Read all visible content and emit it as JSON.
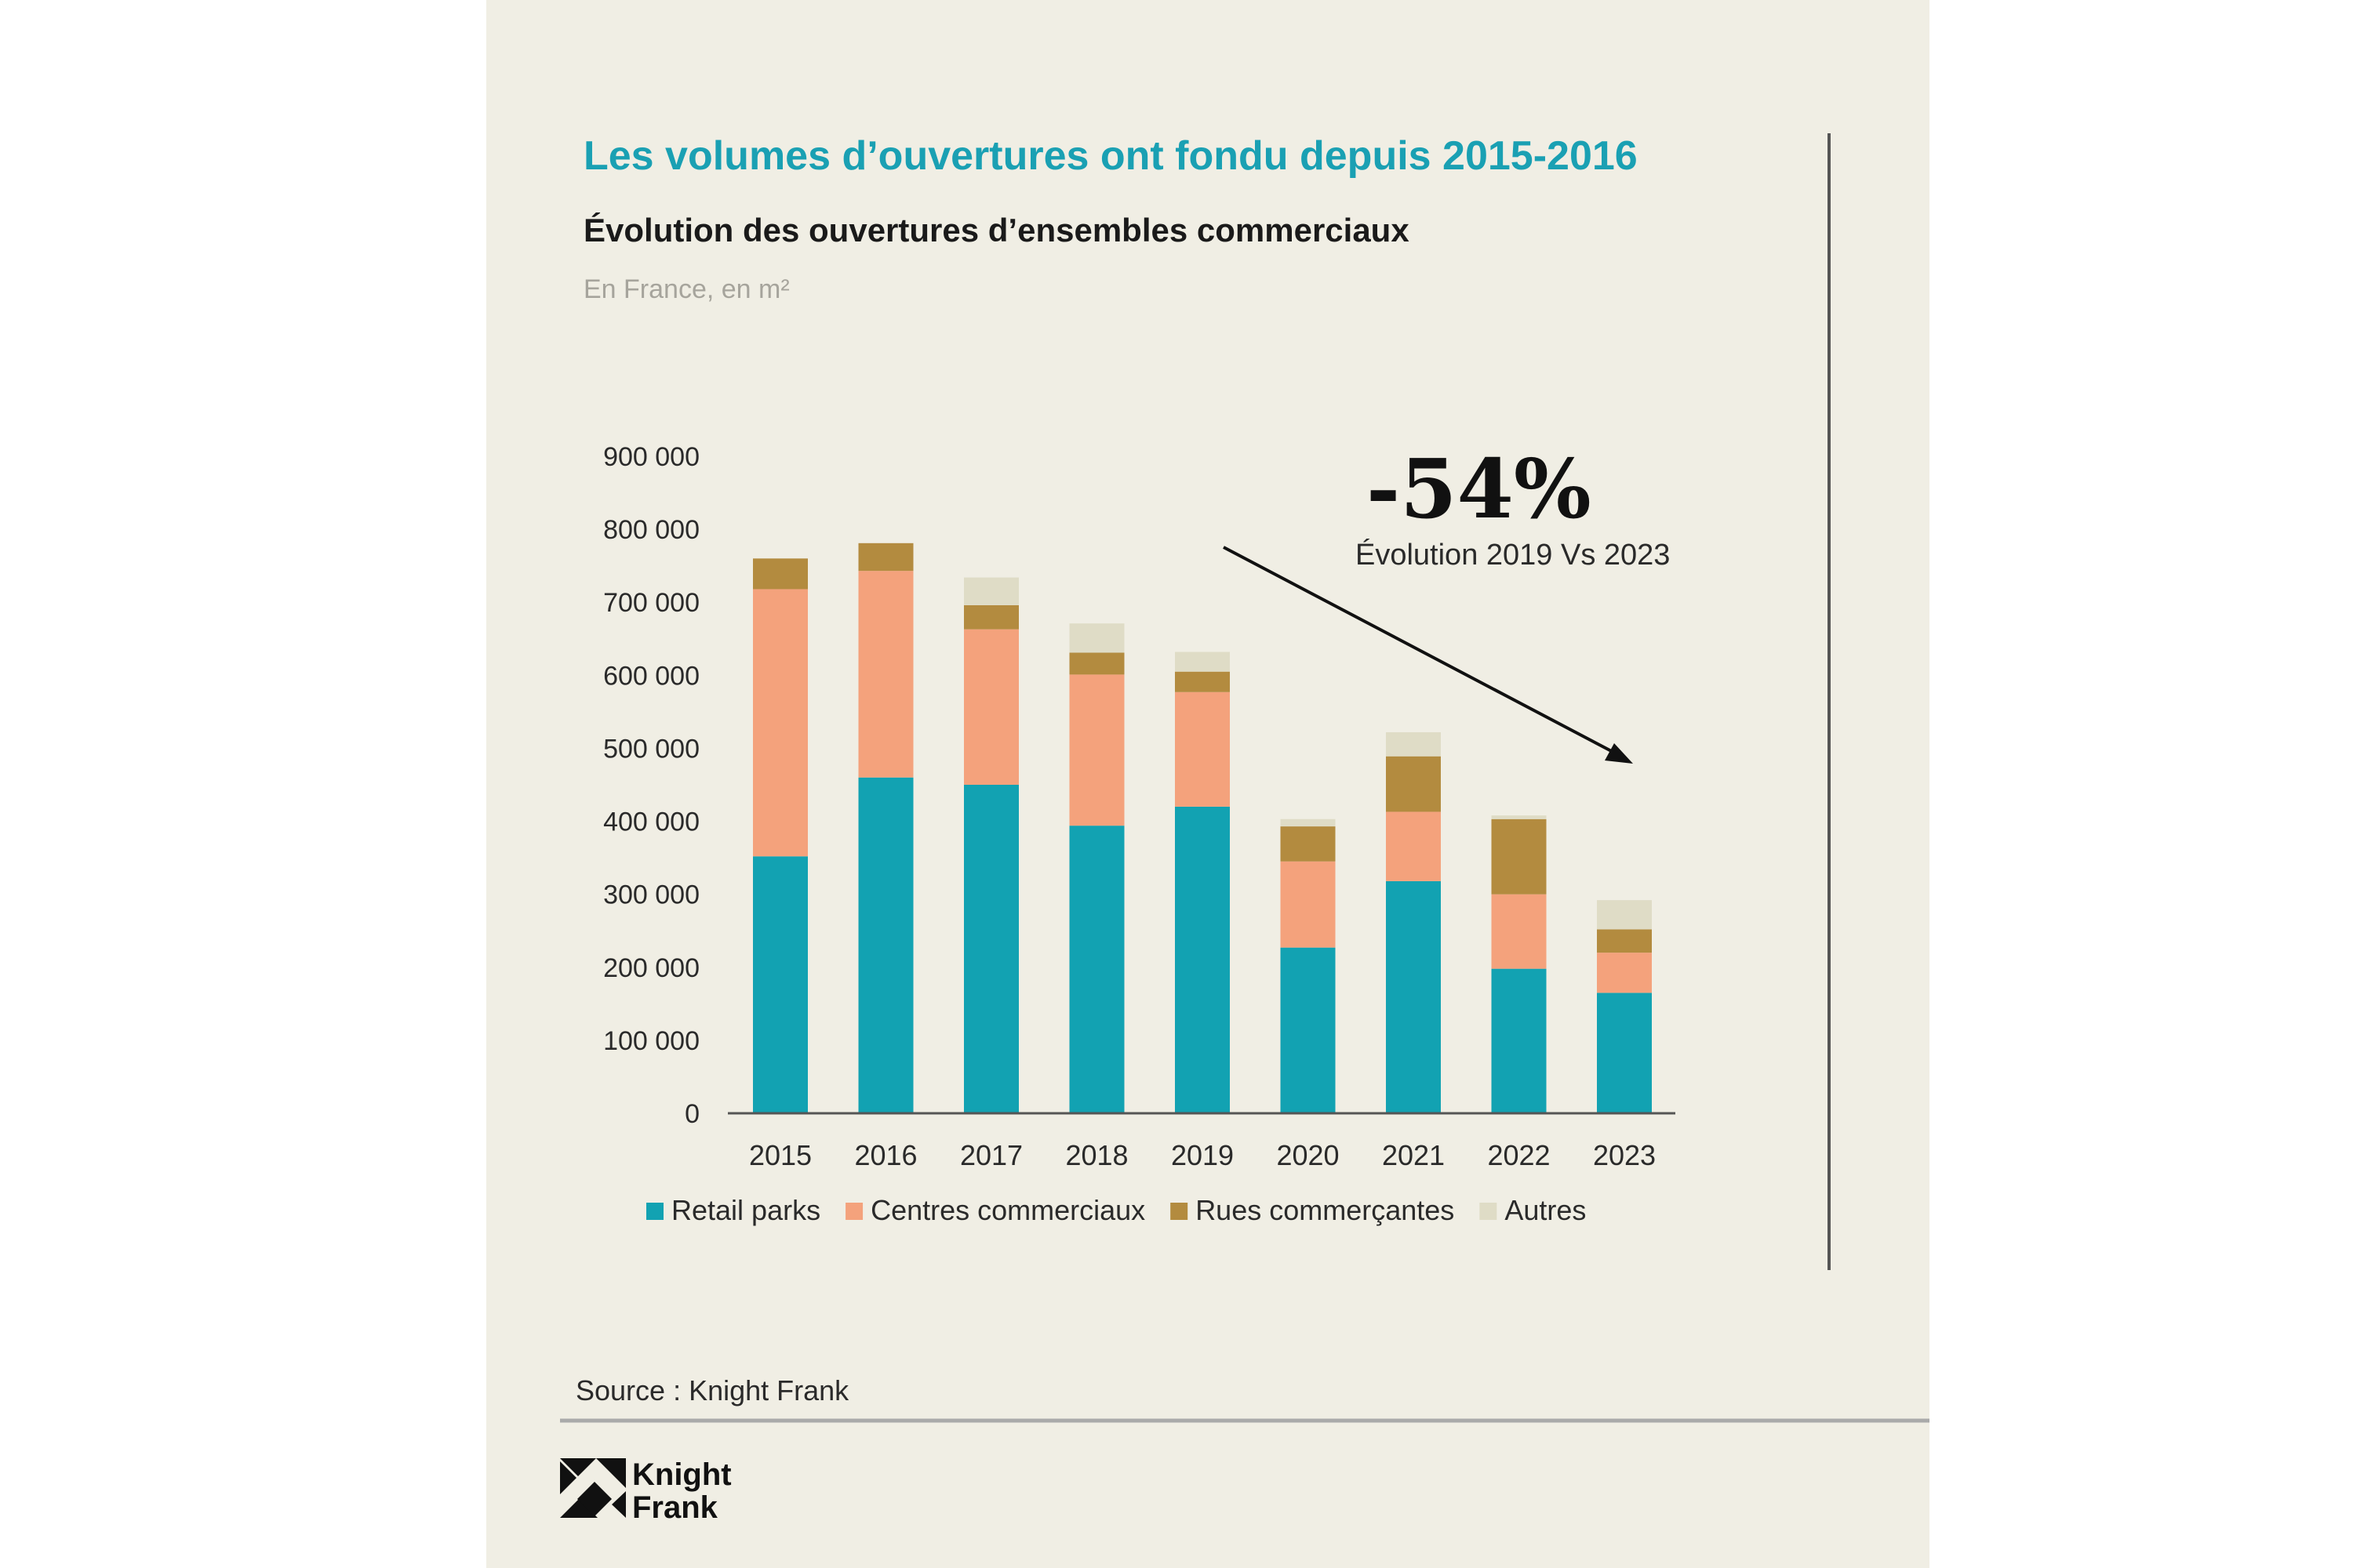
{
  "header": {
    "title": "Les volumes d’ouvertures ont fondu depuis 2015-2016",
    "subtitle": "Évolution des ouvertures d’ensembles commerciaux",
    "caption": "En France, en m²"
  },
  "annotation": {
    "value": "-54%",
    "text": "Évolution 2019 Vs 2023"
  },
  "footer": {
    "source": "Source : Knight Frank",
    "logo_line1": "Knight",
    "logo_line2": "Frank"
  },
  "colors": {
    "panel_background": "#f0eee4",
    "title": "#1aa0b3",
    "retail_parks": "#12a2b2",
    "centres_commerciaux": "#f4a27c",
    "rues_commercantes": "#b38b3f",
    "autres": "#dfdcc6"
  },
  "chart_data": {
    "type": "bar",
    "stacked": true,
    "categories": [
      "2015",
      "2016",
      "2017",
      "2018",
      "2019",
      "2020",
      "2021",
      "2022",
      "2023"
    ],
    "series": [
      {
        "name": "Retail parks",
        "color": "#12a2b2",
        "values": [
          352000,
          460000,
          450000,
          394000,
          420000,
          227000,
          318000,
          198000,
          165000
        ]
      },
      {
        "name": "Centres commerciaux",
        "color": "#f4a27c",
        "values": [
          366000,
          283000,
          213000,
          207000,
          157000,
          118000,
          95000,
          102000,
          55000
        ]
      },
      {
        "name": "Rues commerçantes",
        "color": "#b38b3f",
        "values": [
          42000,
          38000,
          33000,
          30000,
          28000,
          48000,
          76000,
          103000,
          32000
        ]
      },
      {
        "name": "Autres",
        "color": "#dfdcc6",
        "values": [
          0,
          0,
          38000,
          40000,
          27000,
          10000,
          33000,
          5000,
          40000
        ]
      }
    ],
    "yticks": [
      "0",
      "100 000",
      "200 000",
      "300 000",
      "400 000",
      "500 000",
      "600 000",
      "700 000",
      "800 000",
      "900 000"
    ],
    "ylim": [
      0,
      900000
    ],
    "grid": false,
    "legend": "bottom"
  }
}
